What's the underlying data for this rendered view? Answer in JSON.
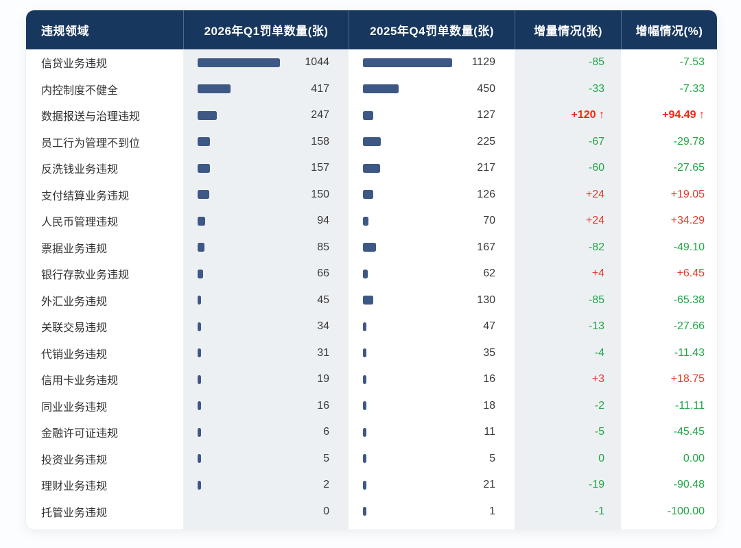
{
  "colors": {
    "header_bg": "#17375e",
    "bar": "#3e5886",
    "band_bg": "#edf0f3",
    "increase_red": "#e5392b",
    "highlight_red": "#f32411",
    "decrease_green": "#22a546"
  },
  "table": {
    "headers": [
      "违规领域",
      "2026年Q1罚单数量(张)",
      "2025年Q4罚单数量(张)",
      "增量情况(张)",
      "增幅情况(%)"
    ],
    "rows": [
      {
        "label": "信贷业务违规",
        "q1": 1044,
        "q4": 1129,
        "delta": "-85",
        "rate": "-7.53",
        "positive": false,
        "highlight": false
      },
      {
        "label": "内控制度不健全",
        "q1": 417,
        "q4": 450,
        "delta": "-33",
        "rate": "-7.33",
        "positive": false,
        "highlight": false
      },
      {
        "label": "数据报送与治理违规",
        "q1": 247,
        "q4": 127,
        "delta": "+120",
        "rate": "+94.49",
        "positive": true,
        "highlight": true
      },
      {
        "label": "员工行为管理不到位",
        "q1": 158,
        "q4": 225,
        "delta": "-67",
        "rate": "-29.78",
        "positive": false,
        "highlight": false
      },
      {
        "label": "反洗钱业务违规",
        "q1": 157,
        "q4": 217,
        "delta": "-60",
        "rate": "-27.65",
        "positive": false,
        "highlight": false
      },
      {
        "label": "支付结算业务违规",
        "q1": 150,
        "q4": 126,
        "delta": "+24",
        "rate": "+19.05",
        "positive": true,
        "highlight": false
      },
      {
        "label": "人民币管理违规",
        "q1": 94,
        "q4": 70,
        "delta": "+24",
        "rate": "+34.29",
        "positive": true,
        "highlight": false
      },
      {
        "label": "票据业务违规",
        "q1": 85,
        "q4": 167,
        "delta": "-82",
        "rate": "-49.10",
        "positive": false,
        "highlight": false
      },
      {
        "label": "银行存款业务违规",
        "q1": 66,
        "q4": 62,
        "delta": "+4",
        "rate": "+6.45",
        "positive": true,
        "highlight": false
      },
      {
        "label": "外汇业务违规",
        "q1": 45,
        "q4": 130,
        "delta": "-85",
        "rate": "-65.38",
        "positive": false,
        "highlight": false
      },
      {
        "label": "关联交易违规",
        "q1": 34,
        "q4": 47,
        "delta": "-13",
        "rate": "-27.66",
        "positive": false,
        "highlight": false
      },
      {
        "label": "代销业务违规",
        "q1": 31,
        "q4": 35,
        "delta": "-4",
        "rate": "-11.43",
        "positive": false,
        "highlight": false
      },
      {
        "label": "信用卡业务违规",
        "q1": 19,
        "q4": 16,
        "delta": "+3",
        "rate": "+18.75",
        "positive": true,
        "highlight": false
      },
      {
        "label": "同业业务违规",
        "q1": 16,
        "q4": 18,
        "delta": "-2",
        "rate": "-11.11",
        "positive": false,
        "highlight": false
      },
      {
        "label": "金融许可证违规",
        "q1": 6,
        "q4": 11,
        "delta": "-5",
        "rate": "-45.45",
        "positive": false,
        "highlight": false
      },
      {
        "label": "投资业务违规",
        "q1": 5,
        "q4": 5,
        "delta": "0",
        "rate": "0.00",
        "positive": false,
        "highlight": false
      },
      {
        "label": "理财业务违规",
        "q1": 2,
        "q4": 21,
        "delta": "-19",
        "rate": "-90.48",
        "positive": false,
        "highlight": false
      },
      {
        "label": "托管业务违规",
        "q1": 0,
        "q4": 1,
        "delta": "-1",
        "rate": "-100.00",
        "positive": false,
        "highlight": false
      }
    ],
    "up_arrow": "↑"
  },
  "chart_data": {
    "type": "table",
    "title": "",
    "columns": [
      "违规领域",
      "2026年Q1罚单数量(张)",
      "2025年Q4罚单数量(张)",
      "增量情况(张)",
      "增幅情况(%)"
    ],
    "categories": [
      "信贷业务违规",
      "内控制度不健全",
      "数据报送与治理违规",
      "员工行为管理不到位",
      "反洗钱业务违规",
      "支付结算业务违规",
      "人民币管理违规",
      "票据业务违规",
      "银行存款业务违规",
      "外汇业务违规",
      "关联交易违规",
      "代销业务违规",
      "信用卡业务违规",
      "同业业务违规",
      "金融许可证违规",
      "投资业务违规",
      "理财业务违规",
      "托管业务违规"
    ],
    "series": [
      {
        "name": "2026年Q1罚单数量(张)",
        "display": "horizontal-bar+value",
        "values": [
          1044,
          417,
          247,
          158,
          157,
          150,
          94,
          85,
          66,
          45,
          34,
          31,
          19,
          16,
          6,
          5,
          2,
          0
        ]
      },
      {
        "name": "2025年Q4罚单数量(张)",
        "display": "horizontal-bar+value",
        "values": [
          1129,
          450,
          127,
          225,
          217,
          126,
          70,
          167,
          62,
          130,
          47,
          35,
          16,
          18,
          11,
          5,
          21,
          1
        ]
      },
      {
        "name": "增量情况(张)",
        "display": "colored-text",
        "values": [
          -85,
          -33,
          120,
          -67,
          -60,
          24,
          24,
          -82,
          4,
          -85,
          -13,
          -4,
          3,
          -2,
          -5,
          0,
          -19,
          -1
        ]
      },
      {
        "name": "增幅情况(%)",
        "display": "colored-text",
        "values": [
          -7.53,
          -7.33,
          94.49,
          -29.78,
          -27.65,
          19.05,
          34.29,
          -49.1,
          6.45,
          -65.38,
          -27.66,
          -11.43,
          18.75,
          -11.11,
          -45.45,
          0.0,
          -90.48,
          -100.0
        ]
      }
    ],
    "bar_axis_max": 1129,
    "color_rule": "positive values red (+ prefix), negative/zero values green; max-increase row bold red with ↑ arrow",
    "legend_position": "none",
    "grid": false
  }
}
